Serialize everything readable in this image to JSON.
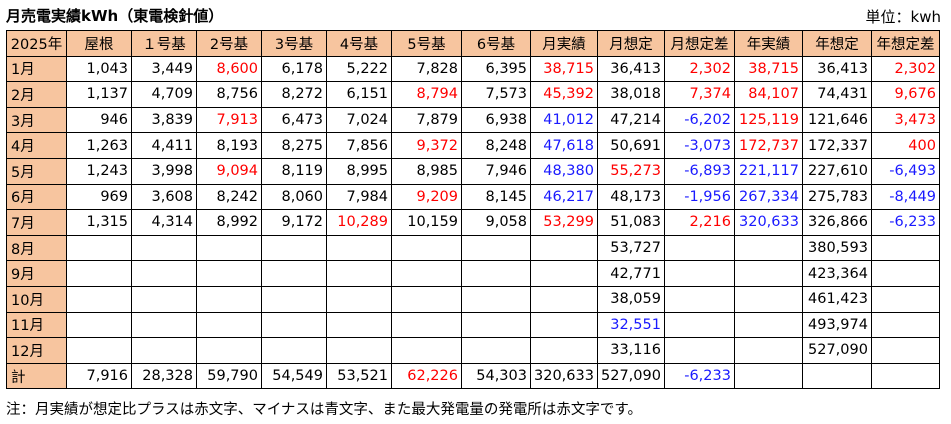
{
  "title": "月売電実績kWh（東電検針値）",
  "unit_label": "単位：kwh",
  "columns": [
    "2025年",
    "屋根",
    "１号基",
    "2号基",
    "3号基",
    "4号基",
    "5号基",
    "6号基",
    "月実績",
    "月想定",
    "月想定差",
    "年実績",
    "年想定",
    "年想定差"
  ],
  "rows": [
    {
      "label": "1月",
      "cells": [
        {
          "v": "1,043",
          "c": ""
        },
        {
          "v": "3,449",
          "c": ""
        },
        {
          "v": "8,600",
          "c": "red"
        },
        {
          "v": "6,178",
          "c": ""
        },
        {
          "v": "5,222",
          "c": ""
        },
        {
          "v": "7,828",
          "c": ""
        },
        {
          "v": "6,395",
          "c": ""
        },
        {
          "v": "38,715",
          "c": "red"
        },
        {
          "v": "36,413",
          "c": ""
        },
        {
          "v": "2,302",
          "c": "red"
        },
        {
          "v": "38,715",
          "c": "red"
        },
        {
          "v": "36,413",
          "c": ""
        },
        {
          "v": "2,302",
          "c": "red"
        }
      ]
    },
    {
      "label": "2月",
      "cells": [
        {
          "v": "1,137",
          "c": ""
        },
        {
          "v": "4,709",
          "c": ""
        },
        {
          "v": "8,756",
          "c": ""
        },
        {
          "v": "8,272",
          "c": ""
        },
        {
          "v": "6,151",
          "c": ""
        },
        {
          "v": "8,794",
          "c": "red"
        },
        {
          "v": "7,573",
          "c": ""
        },
        {
          "v": "45,392",
          "c": "red"
        },
        {
          "v": "38,018",
          "c": ""
        },
        {
          "v": "7,374",
          "c": "red"
        },
        {
          "v": "84,107",
          "c": "red"
        },
        {
          "v": "74,431",
          "c": ""
        },
        {
          "v": "9,676",
          "c": "red"
        }
      ]
    },
    {
      "label": "3月",
      "cells": [
        {
          "v": "946",
          "c": ""
        },
        {
          "v": "3,839",
          "c": ""
        },
        {
          "v": "7,913",
          "c": "red"
        },
        {
          "v": "6,473",
          "c": ""
        },
        {
          "v": "7,024",
          "c": ""
        },
        {
          "v": "7,879",
          "c": ""
        },
        {
          "v": "6,938",
          "c": ""
        },
        {
          "v": "41,012",
          "c": "blue"
        },
        {
          "v": "47,214",
          "c": ""
        },
        {
          "v": "-6,202",
          "c": "blue"
        },
        {
          "v": "125,119",
          "c": "red"
        },
        {
          "v": "121,646",
          "c": ""
        },
        {
          "v": "3,473",
          "c": "red"
        }
      ]
    },
    {
      "label": "4月",
      "cells": [
        {
          "v": "1,263",
          "c": ""
        },
        {
          "v": "4,411",
          "c": ""
        },
        {
          "v": "8,193",
          "c": ""
        },
        {
          "v": "8,275",
          "c": ""
        },
        {
          "v": "7,856",
          "c": ""
        },
        {
          "v": "9,372",
          "c": "red"
        },
        {
          "v": "8,248",
          "c": ""
        },
        {
          "v": "47,618",
          "c": "blue"
        },
        {
          "v": "50,691",
          "c": ""
        },
        {
          "v": "-3,073",
          "c": "blue"
        },
        {
          "v": "172,737",
          "c": "red"
        },
        {
          "v": "172,337",
          "c": ""
        },
        {
          "v": "400",
          "c": "red"
        }
      ]
    },
    {
      "label": "5月",
      "cells": [
        {
          "v": "1,243",
          "c": ""
        },
        {
          "v": "3,998",
          "c": ""
        },
        {
          "v": "9,094",
          "c": "red"
        },
        {
          "v": "8,119",
          "c": ""
        },
        {
          "v": "8,995",
          "c": ""
        },
        {
          "v": "8,985",
          "c": ""
        },
        {
          "v": "7,946",
          "c": ""
        },
        {
          "v": "48,380",
          "c": "blue"
        },
        {
          "v": "55,273",
          "c": "red"
        },
        {
          "v": "-6,893",
          "c": "blue"
        },
        {
          "v": "221,117",
          "c": "blue"
        },
        {
          "v": "227,610",
          "c": ""
        },
        {
          "v": "-6,493",
          "c": "blue"
        }
      ]
    },
    {
      "label": "6月",
      "cells": [
        {
          "v": "969",
          "c": ""
        },
        {
          "v": "3,608",
          "c": ""
        },
        {
          "v": "8,242",
          "c": ""
        },
        {
          "v": "8,060",
          "c": ""
        },
        {
          "v": "7,984",
          "c": ""
        },
        {
          "v": "9,209",
          "c": "red"
        },
        {
          "v": "8,145",
          "c": ""
        },
        {
          "v": "46,217",
          "c": "blue"
        },
        {
          "v": "48,173",
          "c": ""
        },
        {
          "v": "-1,956",
          "c": "blue"
        },
        {
          "v": "267,334",
          "c": "blue"
        },
        {
          "v": "275,783",
          "c": ""
        },
        {
          "v": "-8,449",
          "c": "blue"
        }
      ]
    },
    {
      "label": "7月",
      "cells": [
        {
          "v": "1,315",
          "c": ""
        },
        {
          "v": "4,314",
          "c": ""
        },
        {
          "v": "8,992",
          "c": ""
        },
        {
          "v": "9,172",
          "c": ""
        },
        {
          "v": "10,289",
          "c": "red"
        },
        {
          "v": "10,159",
          "c": ""
        },
        {
          "v": "9,058",
          "c": ""
        },
        {
          "v": "53,299",
          "c": "red"
        },
        {
          "v": "51,083",
          "c": ""
        },
        {
          "v": "2,216",
          "c": "red"
        },
        {
          "v": "320,633",
          "c": "blue"
        },
        {
          "v": "326,866",
          "c": ""
        },
        {
          "v": "-6,233",
          "c": "blue"
        }
      ]
    },
    {
      "label": "8月",
      "cells": [
        {
          "v": "",
          "c": ""
        },
        {
          "v": "",
          "c": ""
        },
        {
          "v": "",
          "c": ""
        },
        {
          "v": "",
          "c": ""
        },
        {
          "v": "",
          "c": ""
        },
        {
          "v": "",
          "c": ""
        },
        {
          "v": "",
          "c": ""
        },
        {
          "v": "",
          "c": ""
        },
        {
          "v": "53,727",
          "c": ""
        },
        {
          "v": "",
          "c": ""
        },
        {
          "v": "",
          "c": ""
        },
        {
          "v": "380,593",
          "c": ""
        },
        {
          "v": "",
          "c": ""
        }
      ]
    },
    {
      "label": "9月",
      "cells": [
        {
          "v": "",
          "c": ""
        },
        {
          "v": "",
          "c": ""
        },
        {
          "v": "",
          "c": ""
        },
        {
          "v": "",
          "c": ""
        },
        {
          "v": "",
          "c": ""
        },
        {
          "v": "",
          "c": ""
        },
        {
          "v": "",
          "c": ""
        },
        {
          "v": "",
          "c": ""
        },
        {
          "v": "42,771",
          "c": ""
        },
        {
          "v": "",
          "c": ""
        },
        {
          "v": "",
          "c": ""
        },
        {
          "v": "423,364",
          "c": ""
        },
        {
          "v": "",
          "c": ""
        }
      ]
    },
    {
      "label": "10月",
      "cells": [
        {
          "v": "",
          "c": ""
        },
        {
          "v": "",
          "c": ""
        },
        {
          "v": "",
          "c": ""
        },
        {
          "v": "",
          "c": ""
        },
        {
          "v": "",
          "c": ""
        },
        {
          "v": "",
          "c": ""
        },
        {
          "v": "",
          "c": ""
        },
        {
          "v": "",
          "c": ""
        },
        {
          "v": "38,059",
          "c": ""
        },
        {
          "v": "",
          "c": ""
        },
        {
          "v": "",
          "c": ""
        },
        {
          "v": "461,423",
          "c": ""
        },
        {
          "v": "",
          "c": ""
        }
      ]
    },
    {
      "label": "11月",
      "cells": [
        {
          "v": "",
          "c": ""
        },
        {
          "v": "",
          "c": ""
        },
        {
          "v": "",
          "c": ""
        },
        {
          "v": "",
          "c": ""
        },
        {
          "v": "",
          "c": ""
        },
        {
          "v": "",
          "c": ""
        },
        {
          "v": "",
          "c": ""
        },
        {
          "v": "",
          "c": ""
        },
        {
          "v": "32,551",
          "c": "blue"
        },
        {
          "v": "",
          "c": ""
        },
        {
          "v": "",
          "c": ""
        },
        {
          "v": "493,974",
          "c": ""
        },
        {
          "v": "",
          "c": ""
        }
      ]
    },
    {
      "label": "12月",
      "cells": [
        {
          "v": "",
          "c": ""
        },
        {
          "v": "",
          "c": ""
        },
        {
          "v": "",
          "c": ""
        },
        {
          "v": "",
          "c": ""
        },
        {
          "v": "",
          "c": ""
        },
        {
          "v": "",
          "c": ""
        },
        {
          "v": "",
          "c": ""
        },
        {
          "v": "",
          "c": ""
        },
        {
          "v": "33,116",
          "c": ""
        },
        {
          "v": "",
          "c": ""
        },
        {
          "v": "",
          "c": ""
        },
        {
          "v": "527,090",
          "c": ""
        },
        {
          "v": "",
          "c": ""
        }
      ]
    },
    {
      "label": "計",
      "cells": [
        {
          "v": "7,916",
          "c": ""
        },
        {
          "v": "28,328",
          "c": ""
        },
        {
          "v": "59,790",
          "c": ""
        },
        {
          "v": "54,549",
          "c": ""
        },
        {
          "v": "53,521",
          "c": ""
        },
        {
          "v": "62,226",
          "c": "red"
        },
        {
          "v": "54,303",
          "c": ""
        },
        {
          "v": "320,633",
          "c": ""
        },
        {
          "v": "527,090",
          "c": ""
        },
        {
          "v": "-6,233",
          "c": "blue"
        },
        {
          "v": "",
          "c": ""
        },
        {
          "v": "",
          "c": ""
        },
        {
          "v": "",
          "c": ""
        }
      ]
    }
  ],
  "note": "注：月実績が想定比プラスは赤文字、マイナスは青文字、また最大発電量の発電所は赤文字です。",
  "colors": {
    "header_bg": "#f7c59f",
    "positive": "#ff0000",
    "negative": "#1a1aff"
  }
}
